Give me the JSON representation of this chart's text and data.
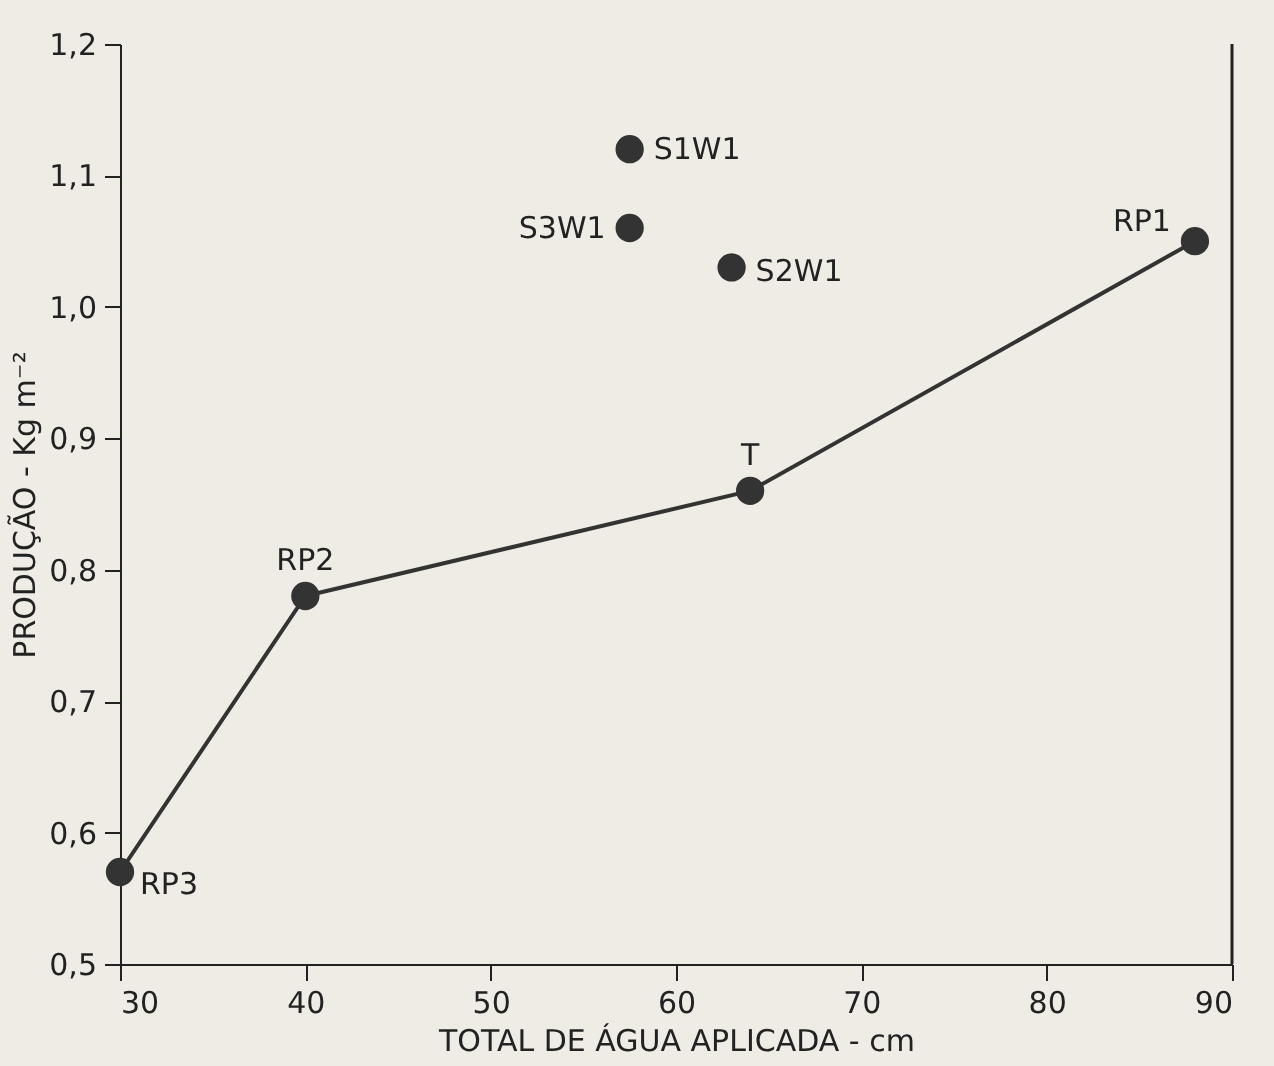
{
  "chart_data": {
    "type": "line",
    "xlabel": "TOTAL DE ÁGUA APLICADA - cm",
    "ylabel": "PRODUÇÃO - Kg m⁻²",
    "xlim": [
      30,
      90
    ],
    "xticks": [
      30,
      40,
      50,
      60,
      70,
      80,
      90
    ],
    "ylim": [
      0.5,
      1.2
    ],
    "yticks": [
      {
        "value": 0.5,
        "label": "0,5"
      },
      {
        "value": 0.6,
        "label": "0,6"
      },
      {
        "value": 0.7,
        "label": "0,7"
      },
      {
        "value": 0.8,
        "label": "0,8"
      },
      {
        "value": 0.9,
        "label": "0,9"
      },
      {
        "value": 1.0,
        "label": "1,0"
      },
      {
        "value": 1.1,
        "label": "1,1"
      },
      {
        "value": 1.2,
        "label": "1,2"
      }
    ],
    "grid": false,
    "marker": "circle",
    "line_style": "solid",
    "series": [
      {
        "color": "#333333",
        "x": [
          30,
          40,
          64,
          88
        ],
        "values": [
          0.57,
          0.78,
          0.86,
          1.05
        ]
      },
      {
        "type": "scatter",
        "color": "#333333",
        "x": [
          57.5,
          57.5,
          63
        ],
        "values": [
          1.12,
          1.06,
          1.03
        ]
      }
    ],
    "annotations": [
      {
        "text": "RP3",
        "x": 30,
        "y": 0.57
      },
      {
        "text": "RP2",
        "x": 40,
        "y": 0.78
      },
      {
        "text": "T",
        "x": 64,
        "y": 0.86
      },
      {
        "text": "RP1",
        "x": 88,
        "y": 1.05
      },
      {
        "text": "S1W1",
        "x": 57.5,
        "y": 1.12
      },
      {
        "text": "S3W1",
        "x": 57.5,
        "y": 1.06
      },
      {
        "text": "S2W1",
        "x": 63,
        "y": 1.03
      }
    ]
  }
}
